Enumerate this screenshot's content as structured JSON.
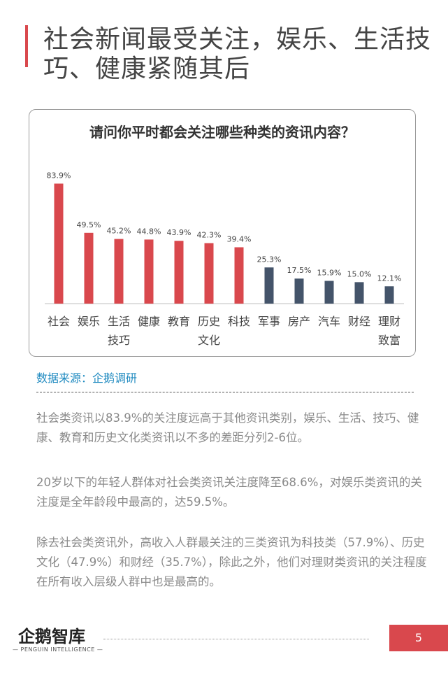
{
  "headline": "社会新闻最受关注，娱乐、生活技巧、健康紧随其后",
  "colors": {
    "accent": "#d9484d",
    "bar_red": "#d9484d",
    "bar_navy": "#44546a",
    "source": "#1f8ac0",
    "body_text": "#8a8a8a"
  },
  "chart_data": {
    "type": "bar",
    "title": "请问你平时都会关注哪些种类的资讯内容？",
    "categories": [
      [
        "社会"
      ],
      [
        "娱乐"
      ],
      [
        "生活",
        "技巧"
      ],
      [
        "健康"
      ],
      [
        "教育"
      ],
      [
        "历史",
        "文化"
      ],
      [
        "科技"
      ],
      [
        "军事"
      ],
      [
        "房产"
      ],
      [
        "汽车"
      ],
      [
        "财经"
      ],
      [
        "理财",
        "致富"
      ]
    ],
    "values": [
      83.9,
      49.5,
      45.2,
      44.8,
      43.9,
      42.3,
      39.4,
      25.3,
      17.5,
      15.9,
      15.0,
      12.1
    ],
    "value_labels": [
      "83.9%",
      "49.5%",
      "45.2%",
      "44.8%",
      "43.9%",
      "42.3%",
      "39.4%",
      "25.3%",
      "17.5%",
      "15.9%",
      "15.0%",
      "12.1%"
    ],
    "bar_colors": [
      "#d9484d",
      "#d9484d",
      "#d9484d",
      "#d9484d",
      "#d9484d",
      "#d9484d",
      "#d9484d",
      "#44546a",
      "#44546a",
      "#44546a",
      "#44546a",
      "#44546a"
    ],
    "xlabel": "",
    "ylabel": "",
    "ylim": [
      0,
      90
    ],
    "grid": false
  },
  "source": "数据来源：企鹅调研",
  "paragraphs": [
    "社会类资讯以83.9%的关注度远高于其他资讯类别，娱乐、生活、技巧、健康、教育和历史文化类资讯以不多的差距分列2-6位。",
    "20岁以下的年轻人群体对社会类资讯关注度降至68.6%，对娱乐类资讯的关注度是全年龄段中最高的，达59.5%。",
    "除去社会类资讯外，高收入人群最关注的三类资讯为科技类（57.9%）、历史文化（47.9%）和财经（35.7%），除此之外，他们对理财类资讯的关注程度在所有收入层级人群中也是最高的。"
  ],
  "footer": {
    "logo_text": "企鹅智库",
    "logo_sub": "— PENGUIN INTELLIGENCE —",
    "page_number": "5"
  }
}
